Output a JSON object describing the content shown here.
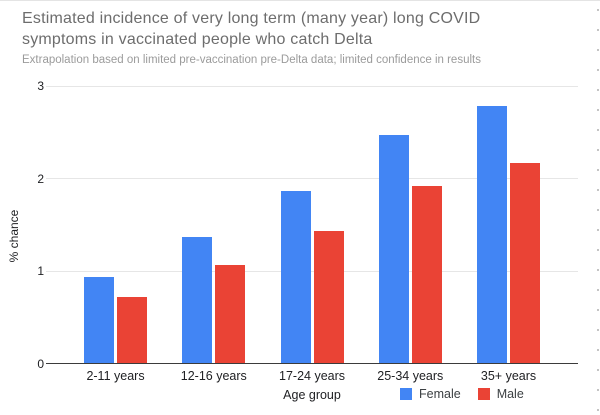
{
  "chart_data": {
    "type": "bar",
    "title": "Estimated incidence of very long term (many year) long COVID symptoms in vaccinated people who catch Delta",
    "subtitle": "Extrapolation based on limited pre-vaccination pre-Delta data; limited confidence in results",
    "categories": [
      "2-11 years",
      "12-16 years",
      "17-24 years",
      "25-34 years",
      "35+ years"
    ],
    "series": [
      {
        "name": "Female",
        "color": "#4285F4",
        "values": [
          0.93,
          1.37,
          1.86,
          2.47,
          2.78
        ]
      },
      {
        "name": "Male",
        "color": "#EA4335",
        "values": [
          0.72,
          1.06,
          1.43,
          1.92,
          2.17
        ]
      }
    ],
    "xlabel": "Age group",
    "ylabel": "% chance",
    "ylim": [
      0,
      3
    ],
    "yticks": [
      0,
      1,
      2,
      3
    ],
    "grid": true,
    "legend_position": "bottom"
  },
  "colors": {
    "female_series": "#4285F4",
    "male_series": "#EA4335",
    "gridline": "#e6e6e6",
    "axis_line": "#3b3b3b",
    "title_text": "#6d6d6d",
    "subtitle_text": "#9b9b9b"
  }
}
